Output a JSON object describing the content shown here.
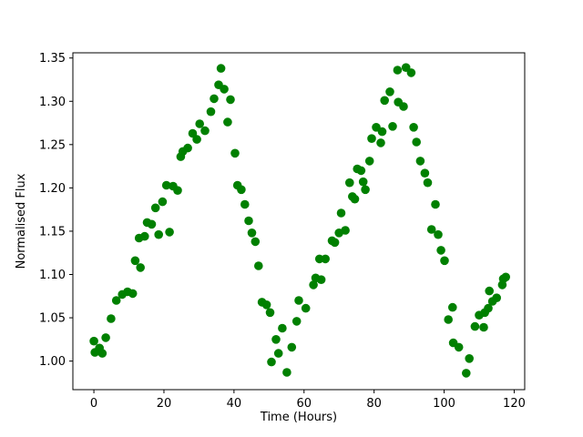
{
  "figure": {
    "background": "#ffffff",
    "axes_edge_color": "#000000",
    "tick_color": "#000000"
  },
  "chart_data": {
    "type": "scatter",
    "title": "",
    "xlabel": "Time (Hours)",
    "ylabel": "Normalised Flux",
    "legend": null,
    "grid": false,
    "marker": "circle",
    "marker_color": "#008000",
    "xlim": [
      -6,
      123
    ],
    "ylim": [
      0.967,
      1.356
    ],
    "x_ticks": [
      0,
      20,
      40,
      60,
      80,
      100,
      120
    ],
    "y_ticks": [
      1.0,
      1.05,
      1.1,
      1.15,
      1.2,
      1.25,
      1.3,
      1.35
    ],
    "points": [
      [
        0.0,
        1.023
      ],
      [
        0.3,
        1.01
      ],
      [
        1.6,
        1.015
      ],
      [
        2.4,
        1.009
      ],
      [
        3.4,
        1.027
      ],
      [
        4.9,
        1.049
      ],
      [
        6.4,
        1.07
      ],
      [
        8.1,
        1.077
      ],
      [
        9.6,
        1.08
      ],
      [
        11.1,
        1.078
      ],
      [
        11.8,
        1.116
      ],
      [
        12.9,
        1.142
      ],
      [
        13.3,
        1.108
      ],
      [
        14.5,
        1.144
      ],
      [
        15.2,
        1.16
      ],
      [
        16.5,
        1.158
      ],
      [
        17.6,
        1.177
      ],
      [
        18.5,
        1.146
      ],
      [
        19.6,
        1.184
      ],
      [
        20.7,
        1.203
      ],
      [
        21.6,
        1.149
      ],
      [
        22.6,
        1.202
      ],
      [
        23.9,
        1.197
      ],
      [
        24.8,
        1.236
      ],
      [
        25.4,
        1.242
      ],
      [
        26.8,
        1.246
      ],
      [
        28.2,
        1.263
      ],
      [
        29.4,
        1.256
      ],
      [
        30.2,
        1.274
      ],
      [
        31.7,
        1.266
      ],
      [
        33.4,
        1.288
      ],
      [
        34.3,
        1.303
      ],
      [
        35.6,
        1.319
      ],
      [
        36.3,
        1.338
      ],
      [
        37.2,
        1.314
      ],
      [
        38.2,
        1.276
      ],
      [
        39.0,
        1.302
      ],
      [
        40.3,
        1.24
      ],
      [
        41.0,
        1.203
      ],
      [
        42.1,
        1.198
      ],
      [
        43.1,
        1.181
      ],
      [
        44.2,
        1.162
      ],
      [
        45.1,
        1.148
      ],
      [
        46.1,
        1.138
      ],
      [
        47.0,
        1.11
      ],
      [
        48.0,
        1.068
      ],
      [
        49.3,
        1.065
      ],
      [
        50.3,
        1.056
      ],
      [
        50.7,
        0.999
      ],
      [
        52.0,
        1.025
      ],
      [
        52.7,
        1.009
      ],
      [
        53.8,
        1.038
      ],
      [
        55.1,
        0.987
      ],
      [
        56.5,
        1.016
      ],
      [
        57.9,
        1.046
      ],
      [
        58.5,
        1.07
      ],
      [
        60.5,
        1.061
      ],
      [
        62.7,
        1.088
      ],
      [
        63.3,
        1.096
      ],
      [
        64.4,
        1.118
      ],
      [
        64.9,
        1.094
      ],
      [
        66.1,
        1.118
      ],
      [
        68.0,
        1.139
      ],
      [
        68.8,
        1.137
      ],
      [
        70.0,
        1.148
      ],
      [
        70.6,
        1.171
      ],
      [
        71.8,
        1.151
      ],
      [
        73.0,
        1.206
      ],
      [
        73.8,
        1.19
      ],
      [
        74.5,
        1.187
      ],
      [
        75.2,
        1.222
      ],
      [
        76.3,
        1.22
      ],
      [
        76.9,
        1.207
      ],
      [
        77.5,
        1.198
      ],
      [
        78.7,
        1.231
      ],
      [
        79.3,
        1.257
      ],
      [
        80.6,
        1.27
      ],
      [
        81.9,
        1.252
      ],
      [
        82.3,
        1.265
      ],
      [
        83.0,
        1.301
      ],
      [
        84.5,
        1.311
      ],
      [
        85.3,
        1.271
      ],
      [
        86.7,
        1.336
      ],
      [
        86.9,
        1.299
      ],
      [
        88.4,
        1.294
      ],
      [
        89.1,
        1.339
      ],
      [
        90.6,
        1.333
      ],
      [
        91.3,
        1.27
      ],
      [
        92.1,
        1.253
      ],
      [
        93.2,
        1.231
      ],
      [
        94.5,
        1.217
      ],
      [
        95.3,
        1.206
      ],
      [
        96.4,
        1.152
      ],
      [
        97.5,
        1.181
      ],
      [
        98.3,
        1.146
      ],
      [
        99.1,
        1.128
      ],
      [
        100.1,
        1.116
      ],
      [
        101.2,
        1.048
      ],
      [
        102.4,
        1.062
      ],
      [
        102.6,
        1.021
      ],
      [
        104.2,
        1.016
      ],
      [
        106.3,
        0.986
      ],
      [
        107.2,
        1.003
      ],
      [
        108.8,
        1.04
      ],
      [
        110.0,
        1.053
      ],
      [
        111.3,
        1.039
      ],
      [
        111.6,
        1.056
      ],
      [
        112.6,
        1.061
      ],
      [
        112.9,
        1.081
      ],
      [
        113.8,
        1.069
      ],
      [
        115.0,
        1.073
      ],
      [
        116.6,
        1.088
      ],
      [
        116.9,
        1.095
      ],
      [
        117.6,
        1.097
      ]
    ]
  }
}
